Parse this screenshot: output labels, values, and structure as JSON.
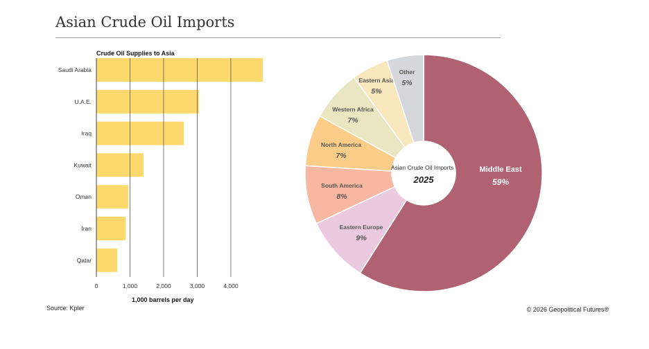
{
  "page_title": "Asian Crude Oil Imports",
  "source": "Source: Kpler",
  "copyright": "© 2026 Geopolitical Futures®",
  "chart_data": [
    {
      "type": "bar",
      "orientation": "horizontal",
      "title": "Crude Oil Supplies to Asia",
      "xlabel": "1,000 barrels per day",
      "ylabel": "",
      "categories": [
        "Saudi Arabia",
        "U.A.E.",
        "Iraq",
        "Kuwait",
        "Oman",
        "Iran",
        "Qatar"
      ],
      "values": [
        4950,
        3050,
        2600,
        1400,
        950,
        870,
        620
      ],
      "xlim": [
        0,
        4950
      ],
      "xticks": [
        0,
        1000,
        2000,
        3000,
        4000
      ],
      "xtick_labels": [
        "0",
        "1,000",
        "2,000",
        "3,000",
        "4,000"
      ],
      "grid": true,
      "color": "#FDD96D"
    },
    {
      "type": "pie",
      "style": "donut",
      "center_label": "Asian Crude Oil Imports",
      "center_year": "2025",
      "slices": [
        {
          "label": "Middle East",
          "value": 59,
          "display": "59%",
          "color": "#B06272"
        },
        {
          "label": "Eastern Europe",
          "value": 9,
          "display": "9%",
          "color": "#EBCADF"
        },
        {
          "label": "South America",
          "value": 8,
          "display": "8%",
          "color": "#F8B7A1"
        },
        {
          "label": "North America",
          "value": 7,
          "display": "7%",
          "color": "#FBCD89"
        },
        {
          "label": "Western Africa",
          "value": 7,
          "display": "7%",
          "color": "#EAE6C1"
        },
        {
          "label": "Eastern Asia",
          "value": 5,
          "display": "5%",
          "color": "#F9E8BE"
        },
        {
          "label": "Other",
          "value": 5,
          "display": "5%",
          "color": "#D5D8DB"
        }
      ]
    }
  ]
}
